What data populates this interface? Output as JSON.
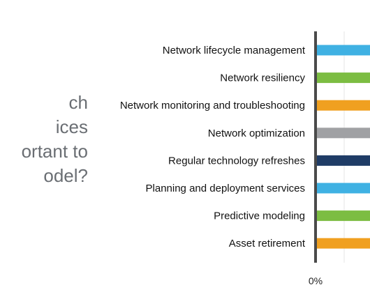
{
  "question": {
    "lines": [
      "ch",
      "ices",
      "ortant to",
      "odel?"
    ]
  },
  "chart_data": {
    "type": "bar",
    "orientation": "horizontal",
    "title": "",
    "xlabel": "",
    "ylabel": "",
    "categories": [
      "Network lifecycle management",
      "Network resiliency",
      "Network monitoring and troubleshooting",
      "Network optimization",
      "Regular technology refreshes",
      "Planning and deployment services",
      "Predictive modeling",
      "Asset retirement"
    ],
    "colors": [
      "#3fb1e3",
      "#7cbd42",
      "#f0a020",
      "#a0a1a4",
      "#1f3c66",
      "#3fb1e3",
      "#7cbd42",
      "#f0a020"
    ],
    "x_ticks": [
      "0%"
    ],
    "grid": true,
    "note": "bars are cropped at the right edge; values not visible"
  }
}
